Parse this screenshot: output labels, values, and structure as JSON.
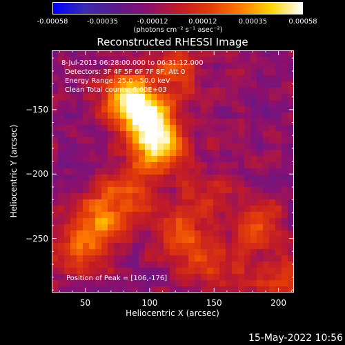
{
  "chart_data": {
    "type": "heatmap",
    "title": "Reconstructed RHESSI Image",
    "xlabel": "Heliocentric X (arcsec)",
    "ylabel": "Heliocentric Y (arcsec)",
    "xlim": [
      24,
      212
    ],
    "ylim": [
      -292,
      -104
    ],
    "x_ticks": [
      50,
      100,
      150,
      200
    ],
    "y_ticks": [
      -150,
      -200,
      -250
    ],
    "colorbar": {
      "range": [
        -0.00058,
        0.00058
      ],
      "tick_labels": [
        "-0.00058",
        "-0.00035",
        "-0.00012",
        "0.00012",
        "0.00035",
        "0.00058"
      ],
      "unit": "(photons cm⁻² s⁻¹ asec⁻²)",
      "colormap": [
        "#0000ff",
        "#3b2bb0",
        "#5a1a8c",
        "#8a1070",
        "#c01a28",
        "#e23a0a",
        "#ff7a00",
        "#ffd400",
        "#ffffff"
      ]
    },
    "sources": [
      {
        "x": 106,
        "y": -176,
        "intensity": 1.0
      },
      {
        "x": 95,
        "y": -150,
        "intensity": 0.75
      },
      {
        "x": 80,
        "y": -140,
        "intensity": 0.55
      },
      {
        "x": 60,
        "y": -235,
        "intensity": 0.55
      },
      {
        "x": 45,
        "y": -260,
        "intensity": 0.45
      },
      {
        "x": 85,
        "y": -215,
        "intensity": 0.45
      },
      {
        "x": 125,
        "y": -250,
        "intensity": 0.45
      },
      {
        "x": 185,
        "y": -240,
        "intensity": 0.42
      },
      {
        "x": 200,
        "y": -285,
        "intensity": 0.38
      },
      {
        "x": 150,
        "y": -275,
        "intensity": 0.35
      },
      {
        "x": 120,
        "y": -120,
        "intensity": 0.4
      },
      {
        "x": 140,
        "y": -215,
        "intensity": 0.3
      }
    ],
    "annotations": {
      "time": "8-Jul-2013 06:28:00.000 to 06:31:12.000",
      "detectors": "Detectors: 3F 4F 5F 6F 7F 8F, Att 0",
      "energy": "Energy Range: 25.0 - 50.0 keV",
      "method": "Clean     Total counts: 6.60E+03",
      "peak": "Position of Peak = [106,-176]"
    }
  },
  "timestamp": "15-May-2022 10:56"
}
